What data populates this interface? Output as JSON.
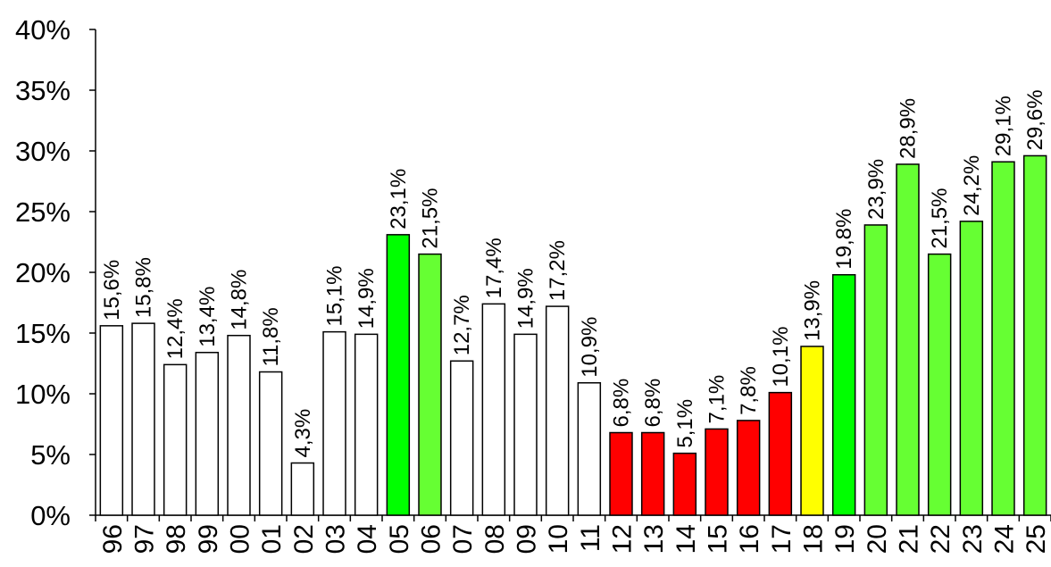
{
  "chart_data": {
    "type": "bar",
    "title": "",
    "xlabel": "",
    "ylabel": "",
    "ylim": [
      0,
      40
    ],
    "y_ticks": [
      0,
      5,
      10,
      15,
      20,
      25,
      30,
      35,
      40
    ],
    "y_tick_labels": [
      "0%",
      "5%",
      "10%",
      "15%",
      "20%",
      "25%",
      "30%",
      "35%",
      "40%"
    ],
    "grid": false,
    "categories": [
      "96",
      "97",
      "98",
      "99",
      "00",
      "01",
      "02",
      "03",
      "04",
      "05",
      "06",
      "07",
      "08",
      "09",
      "10",
      "11",
      "12",
      "13",
      "14",
      "15",
      "16",
      "17",
      "18",
      "19",
      "20",
      "21",
      "22",
      "23",
      "24",
      "25"
    ],
    "values": [
      15.6,
      15.8,
      12.4,
      13.4,
      14.8,
      11.8,
      4.3,
      15.1,
      14.9,
      23.1,
      21.5,
      12.7,
      17.4,
      14.9,
      17.2,
      10.9,
      6.8,
      6.8,
      5.1,
      7.1,
      7.8,
      10.1,
      13.9,
      19.8,
      23.9,
      28.9,
      21.5,
      24.2,
      29.1,
      29.6
    ],
    "value_labels": [
      "15,6%",
      "15,8%",
      "12,4%",
      "13,4%",
      "14,8%",
      "11,8%",
      "4,3%",
      "15,1%",
      "14,9%",
      "23,1%",
      "21,5%",
      "12,7%",
      "17,4%",
      "14,9%",
      "17,2%",
      "10,9%",
      "6,8%",
      "6,8%",
      "5,1%",
      "7,1%",
      "7,8%",
      "10,1%",
      "13,9%",
      "19,8%",
      "23,9%",
      "28,9%",
      "21,5%",
      "24,2%",
      "29,1%",
      "29,6%"
    ],
    "bar_colors": [
      "#ffffff",
      "#ffffff",
      "#ffffff",
      "#ffffff",
      "#ffffff",
      "#ffffff",
      "#ffffff",
      "#ffffff",
      "#ffffff",
      "#00ff00",
      "#66ff33",
      "#ffffff",
      "#ffffff",
      "#ffffff",
      "#ffffff",
      "#ffffff",
      "#ff0000",
      "#ff0000",
      "#ff0000",
      "#ff0000",
      "#ff0000",
      "#ff0000",
      "#ffff00",
      "#00ff00",
      "#66ff33",
      "#66ff33",
      "#66ff33",
      "#66ff33",
      "#66ff33",
      "#66ff33"
    ],
    "bar_stroke": "#000000"
  }
}
